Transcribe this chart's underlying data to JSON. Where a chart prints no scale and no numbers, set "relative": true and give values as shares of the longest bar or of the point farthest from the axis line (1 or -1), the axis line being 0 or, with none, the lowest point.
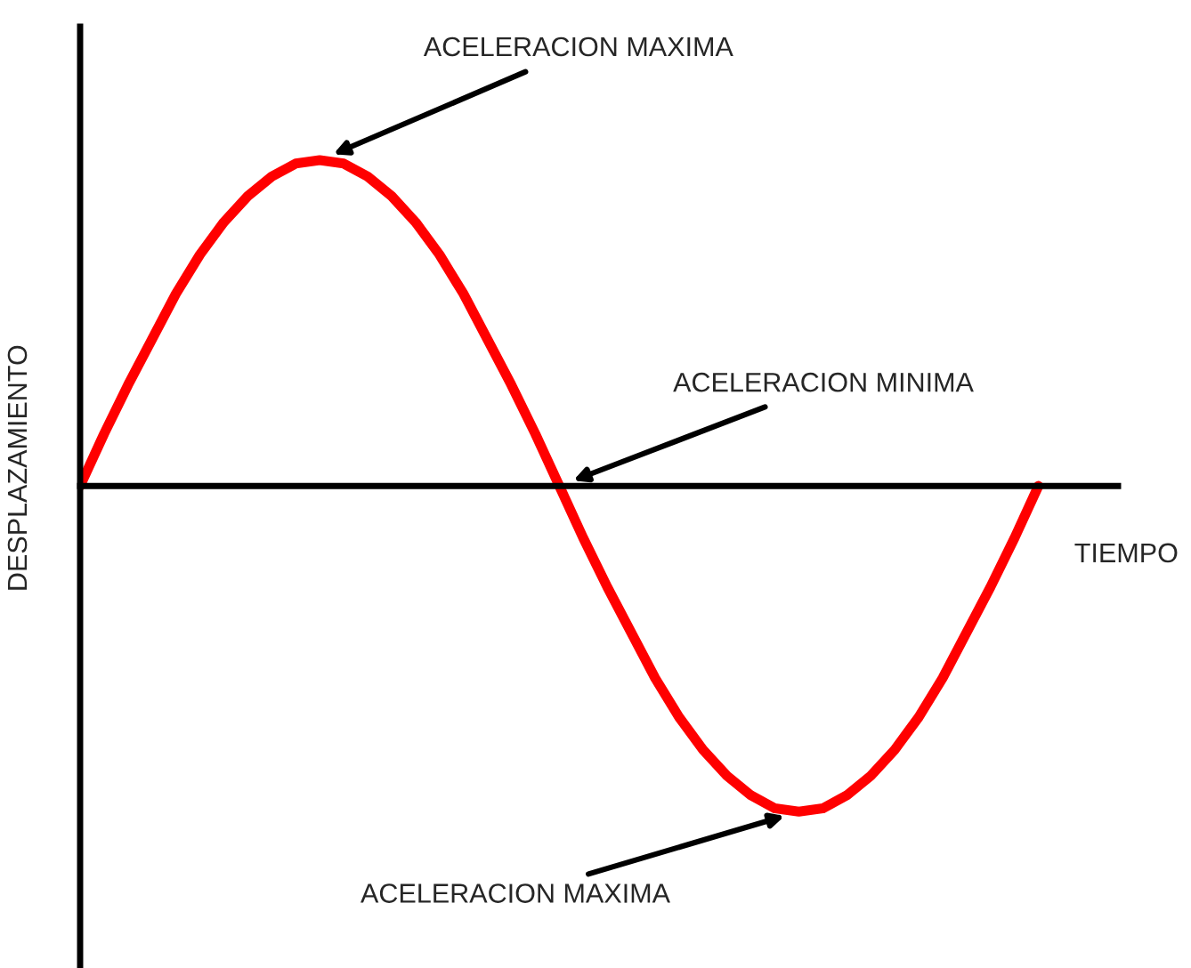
{
  "chart_data": {
    "type": "line",
    "relative": true,
    "xlabel": "TIEMPO",
    "ylabel": "DESPLAZAMIENTO",
    "categories": [
      null,
      null,
      null,
      null,
      null,
      null,
      null,
      null,
      null,
      null,
      null,
      null,
      null,
      null,
      null,
      null,
      null,
      null,
      null,
      null,
      null,
      null,
      null,
      null,
      null,
      null,
      null,
      null,
      null,
      null,
      null,
      null,
      null,
      null,
      null,
      null,
      null,
      null,
      null,
      null,
      null
    ],
    "series": [
      {
        "color": "#ff0000",
        "values": [
          0,
          0.16,
          0.31,
          0.45,
          0.59,
          0.71,
          0.81,
          0.89,
          0.95,
          0.99,
          1,
          0.99,
          0.95,
          0.89,
          0.81,
          0.71,
          0.59,
          0.45,
          0.31,
          0.16,
          0,
          -0.16,
          -0.31,
          -0.45,
          -0.59,
          -0.71,
          -0.81,
          -0.89,
          -0.95,
          -0.99,
          -1,
          -0.99,
          -0.95,
          -0.89,
          -0.81,
          -0.71,
          -0.59,
          -0.45,
          -0.31,
          -0.16,
          0
        ]
      }
    ],
    "annotations": [
      "ACELERACION MAXIMA",
      "ACELERACION MINIMA",
      "ACELERACION MAXIMA"
    ],
    "marker": "none",
    "line_style": "solid"
  }
}
